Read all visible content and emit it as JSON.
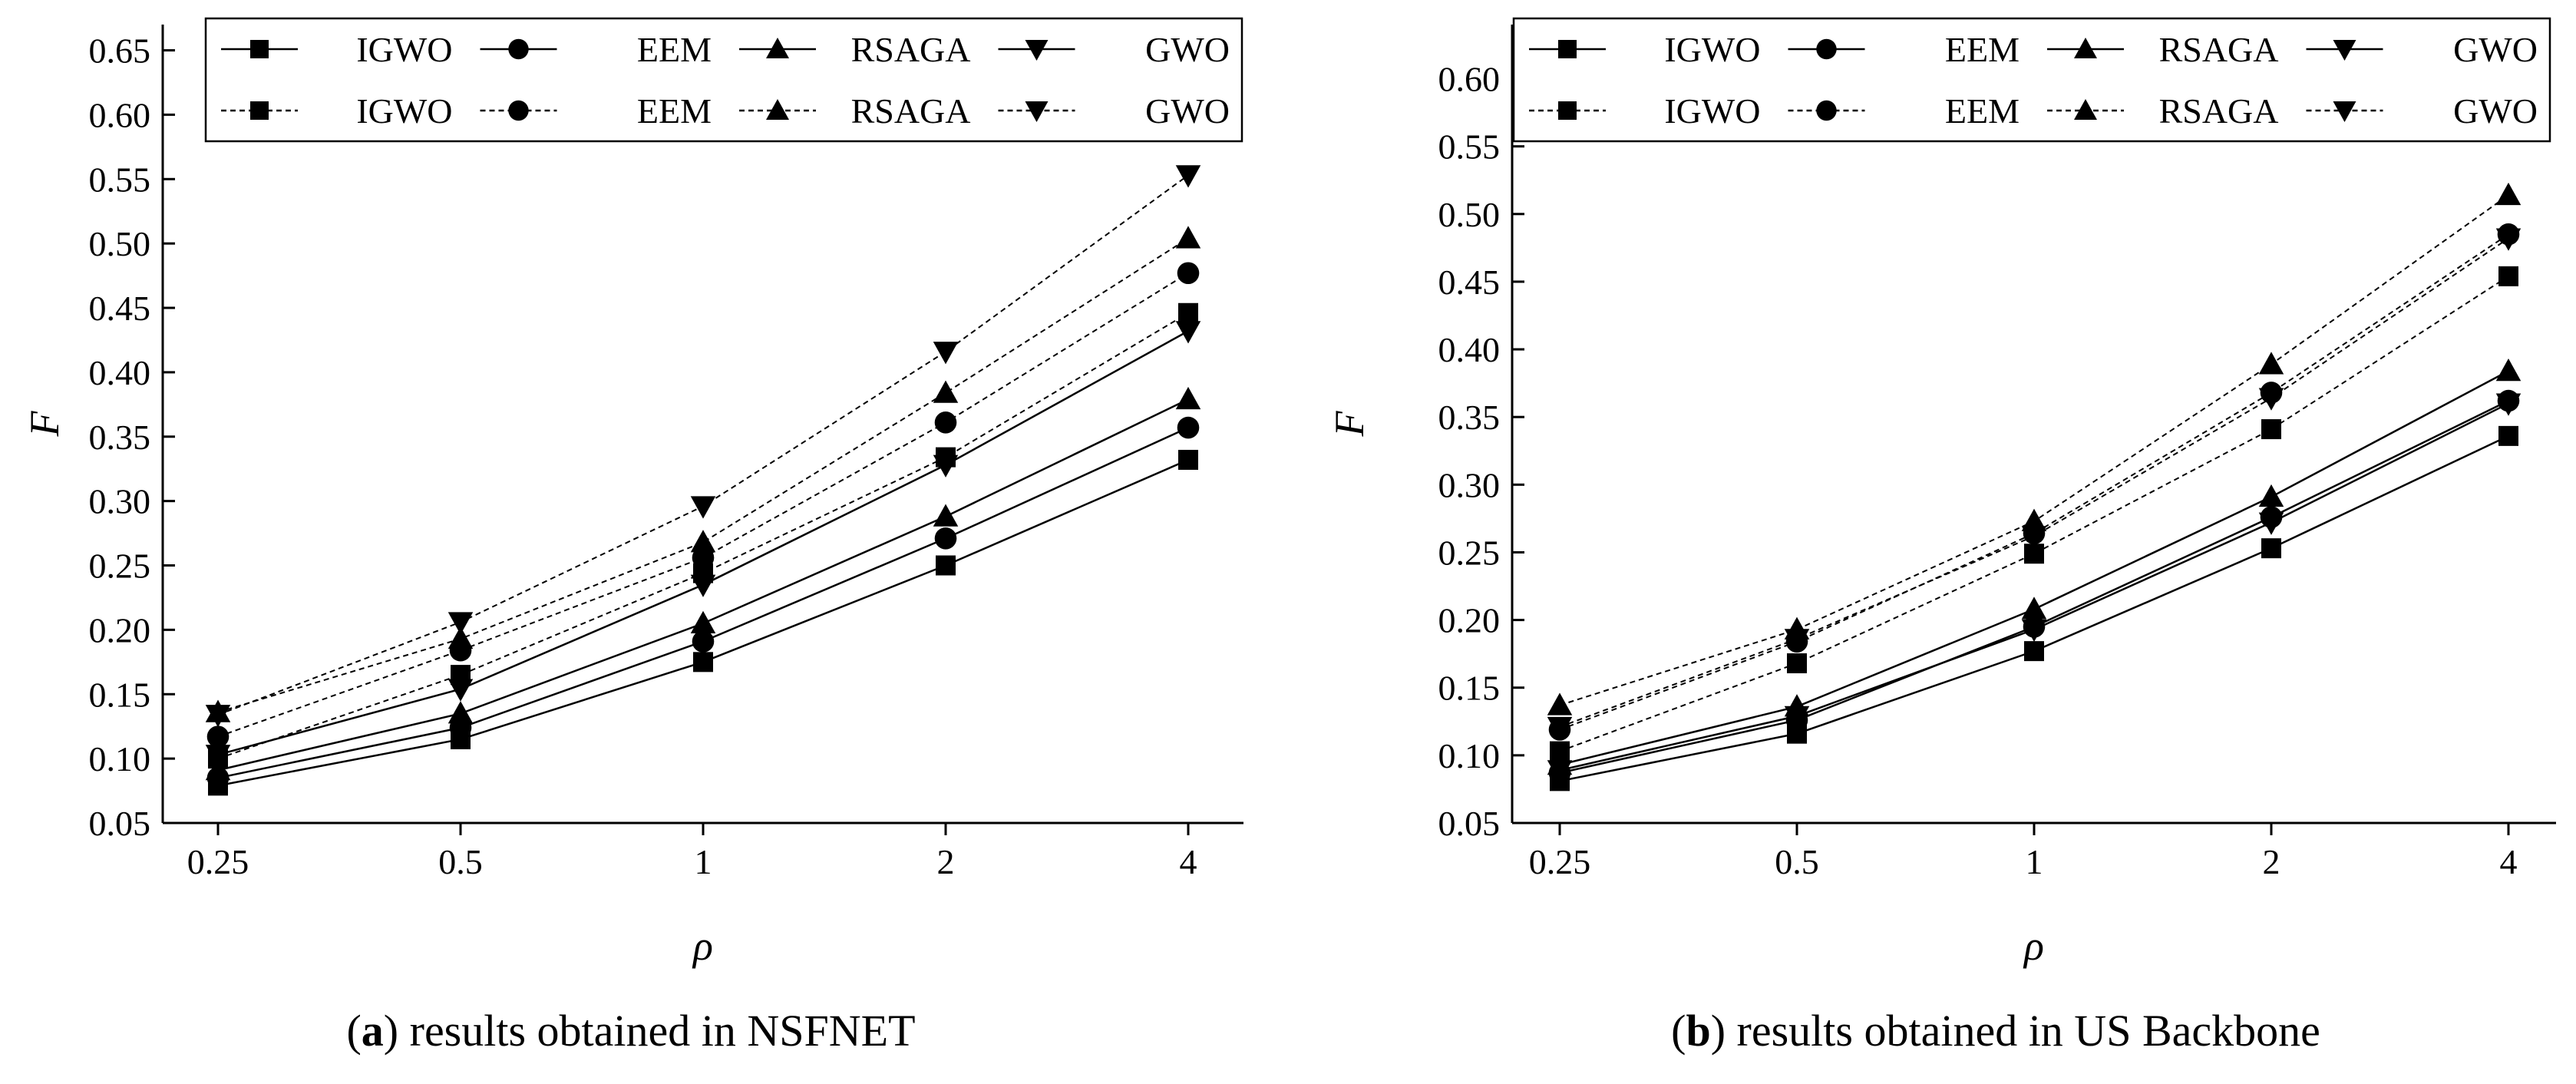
{
  "figure": {
    "marker_shapes": {
      "IGWO": "square",
      "EEM": "circle",
      "RSAGA": "triangle-up",
      "GWO": "triangle-down"
    }
  },
  "chart_data": [
    {
      "type": "line",
      "panel_label": "a",
      "caption": "results obtained in NSFNET",
      "xlabel": "ρ",
      "ylabel": "F",
      "categories": [
        "0.25",
        "0.5",
        "1",
        "2",
        "4"
      ],
      "ylim": [
        0.05,
        0.67
      ],
      "yticks": [
        0.05,
        0.1,
        0.15,
        0.2,
        0.25,
        0.3,
        0.35,
        0.4,
        0.45,
        0.5,
        0.55,
        0.6,
        0.65
      ],
      "legend_position": "top",
      "grid": false,
      "series": [
        {
          "name": "IGWO",
          "style": "solid",
          "values": [
            0.079,
            0.115,
            0.175,
            0.25,
            0.332
          ]
        },
        {
          "name": "EEM",
          "style": "solid",
          "values": [
            0.085,
            0.124,
            0.191,
            0.271,
            0.357
          ]
        },
        {
          "name": "RSAGA",
          "style": "solid",
          "values": [
            0.091,
            0.135,
            0.205,
            0.288,
            0.379
          ]
        },
        {
          "name": "GWO",
          "style": "solid",
          "values": [
            0.103,
            0.154,
            0.235,
            0.328,
            0.432
          ]
        },
        {
          "name": "IGWO",
          "style": "dashed",
          "values": [
            0.1,
            0.165,
            0.244,
            0.334,
            0.446
          ]
        },
        {
          "name": "EEM",
          "style": "dashed",
          "values": [
            0.117,
            0.184,
            0.256,
            0.361,
            0.477
          ]
        },
        {
          "name": "RSAGA",
          "style": "dashed",
          "values": [
            0.136,
            0.193,
            0.268,
            0.384,
            0.504
          ]
        },
        {
          "name": "GWO",
          "style": "dashed",
          "values": [
            0.134,
            0.206,
            0.296,
            0.416,
            0.553
          ]
        }
      ]
    },
    {
      "type": "line",
      "panel_label": "b",
      "caption": "results obtained in US Backbone",
      "xlabel": "ρ",
      "ylabel": "F",
      "categories": [
        "0.25",
        "0.5",
        "1",
        "2",
        "4"
      ],
      "ylim": [
        0.05,
        0.64
      ],
      "yticks": [
        0.05,
        0.1,
        0.15,
        0.2,
        0.25,
        0.3,
        0.35,
        0.4,
        0.45,
        0.5,
        0.55,
        0.6
      ],
      "legend_position": "top",
      "grid": false,
      "series": [
        {
          "name": "IGWO",
          "style": "solid",
          "values": [
            0.081,
            0.116,
            0.177,
            0.253,
            0.336
          ]
        },
        {
          "name": "EEM",
          "style": "solid",
          "values": [
            0.087,
            0.126,
            0.195,
            0.276,
            0.362
          ]
        },
        {
          "name": "RSAGA",
          "style": "solid",
          "values": [
            0.093,
            0.136,
            0.208,
            0.291,
            0.384
          ]
        },
        {
          "name": "GWO",
          "style": "solid",
          "values": [
            0.089,
            0.129,
            0.193,
            0.272,
            0.36
          ]
        },
        {
          "name": "IGWO",
          "style": "dashed",
          "values": [
            0.103,
            0.168,
            0.249,
            0.341,
            0.454
          ]
        },
        {
          "name": "EEM",
          "style": "dashed",
          "values": [
            0.119,
            0.184,
            0.264,
            0.368,
            0.485
          ]
        },
        {
          "name": "RSAGA",
          "style": "dashed",
          "values": [
            0.137,
            0.193,
            0.273,
            0.389,
            0.514
          ]
        },
        {
          "name": "GWO",
          "style": "dashed",
          "values": [
            0.121,
            0.186,
            0.262,
            0.364,
            0.482
          ]
        }
      ]
    }
  ]
}
